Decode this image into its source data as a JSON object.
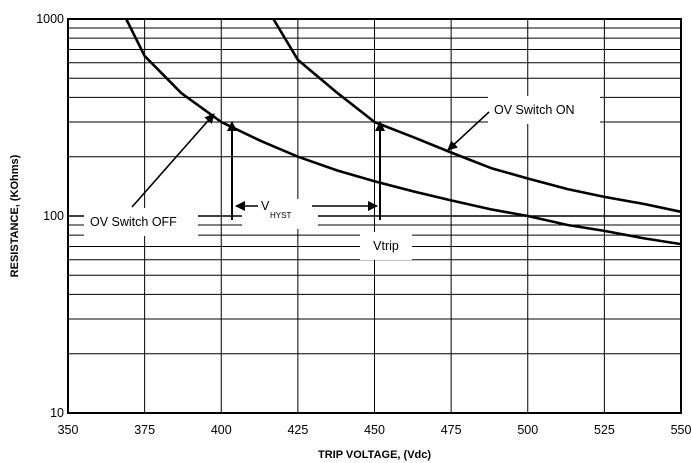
{
  "chart_data": {
    "type": "line",
    "xlabel": "TRIP VOLTAGE, (Vdc)",
    "ylabel": "RESISTANCE, (KOhms)",
    "xlim": [
      350,
      550
    ],
    "ylim": [
      10,
      1000
    ],
    "yscale": "log",
    "grid": true,
    "x_ticks": [
      "350",
      "375",
      "400",
      "425",
      "450",
      "475",
      "500",
      "525",
      "550"
    ],
    "y_ticks": [
      "10",
      "100",
      "1000"
    ],
    "series": [
      {
        "name": "OV Switch OFF",
        "x": [
          369,
          375,
          387,
          400,
          413,
          425,
          438,
          450,
          463,
          475,
          488,
          500,
          513,
          525,
          538,
          550
        ],
        "y": [
          1000,
          650,
          420,
          300,
          240,
          200,
          170,
          150,
          133,
          120,
          108,
          100,
          90,
          84,
          77,
          72
        ]
      },
      {
        "name": "OV Switch ON",
        "x": [
          417,
          425,
          438,
          450,
          463,
          475,
          488,
          500,
          513,
          525,
          538,
          550
        ],
        "y": [
          1000,
          620,
          420,
          300,
          250,
          210,
          175,
          155,
          137,
          125,
          115,
          105
        ]
      }
    ],
    "annotations": {
      "switch_off_label": "OV Switch OFF",
      "switch_on_label": "OV Switch ON",
      "hyst_main": "V",
      "hyst_sub": "HYST",
      "vtrip_label": "Vtrip",
      "arrow_points": [
        {
          "from_x": 400,
          "from_y": 10
        },
        {
          "x": 402,
          "y_from": 95,
          "y_to": 300
        },
        {
          "x": 451,
          "y_from": 95,
          "y_to": 300
        }
      ]
    }
  }
}
